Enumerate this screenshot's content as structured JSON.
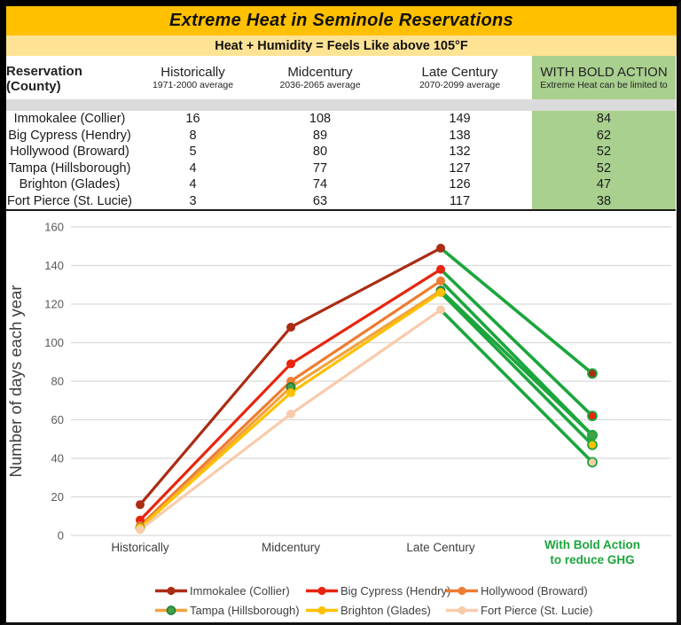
{
  "title": "Extreme Heat in Seminole Reservations",
  "subtitle": "Heat + Humidity = Feels Like above 105°F",
  "theme": {
    "title_bg": "#FFC000",
    "subtitle_bg": "#FFE394",
    "bold_col_bg": "#A9D08E",
    "spacer_bg": "#DBDBDB",
    "grid_color": "#D9D9D9",
    "green_line": "#1BA63C"
  },
  "table": {
    "header": {
      "label": "Reservation (County)",
      "cols": [
        {
          "line1": "Historically",
          "line2": "1971-2000 average"
        },
        {
          "line1": "Midcentury",
          "line2": "2036-2065 average"
        },
        {
          "line1": "Late Century",
          "line2": "2070-2099 average"
        }
      ],
      "bold": {
        "line1": "WITH BOLD ACTION",
        "line2": "Extreme Heat can be limited to"
      }
    },
    "rows": [
      {
        "name": "Immokalee (Collier)",
        "values": [
          "16",
          "108",
          "149",
          "84"
        ]
      },
      {
        "name": "Big Cypress (Hendry)",
        "values": [
          "8",
          "89",
          "138",
          "62"
        ]
      },
      {
        "name": "Hollywood (Broward)",
        "values": [
          "5",
          "80",
          "132",
          "52"
        ]
      },
      {
        "name": "Tampa (Hillsborough)",
        "values": [
          "4",
          "77",
          "127",
          "52"
        ]
      },
      {
        "name": "Brighton (Glades)",
        "values": [
          "4",
          "74",
          "126",
          "47"
        ]
      },
      {
        "name": "Fort Pierce (St. Lucie)",
        "values": [
          "3",
          "63",
          "117",
          "38"
        ]
      }
    ]
  },
  "chart_data": {
    "type": "line",
    "categories": [
      "Historically",
      "Midcentury",
      "Late Century",
      "With Bold Action to reduce GHG"
    ],
    "bold_label_lines": [
      "With Bold Action",
      "to reduce GHG"
    ],
    "series": [
      {
        "name": "Immokalee (Collier)",
        "values": [
          16,
          108,
          149,
          84
        ],
        "color": "#AA2D14",
        "marker": "#AA2D14"
      },
      {
        "name": "Big Cypress (Hendry)",
        "values": [
          8,
          89,
          138,
          62
        ],
        "color": "#E8250F",
        "marker": "#E8250F"
      },
      {
        "name": "Hollywood (Broward)",
        "values": [
          5,
          80,
          132,
          52
        ],
        "color": "#ED7D31",
        "marker": "#ED7D31"
      },
      {
        "name": "Tampa (Hillsborough)",
        "values": [
          4,
          77,
          127,
          52
        ],
        "color": "#F2A33C",
        "marker": "#43A047",
        "marker_stroke": "#1E7B34"
      },
      {
        "name": "Brighton (Glades)",
        "values": [
          4,
          74,
          126,
          47
        ],
        "color": "#FFC000",
        "marker": "#FFC000"
      },
      {
        "name": "Fort Pierce (St. Lucie)",
        "values": [
          3,
          63,
          117,
          38
        ],
        "color": "#F8CBAD",
        "marker": "#F8CBAD"
      }
    ],
    "bold_action_color": "#1BA63C",
    "title": "",
    "xlabel": "",
    "ylabel": "Number of days each year",
    "ylim": [
      0,
      160
    ],
    "ytick_step": 20,
    "grid": true,
    "legend_position": "bottom"
  }
}
